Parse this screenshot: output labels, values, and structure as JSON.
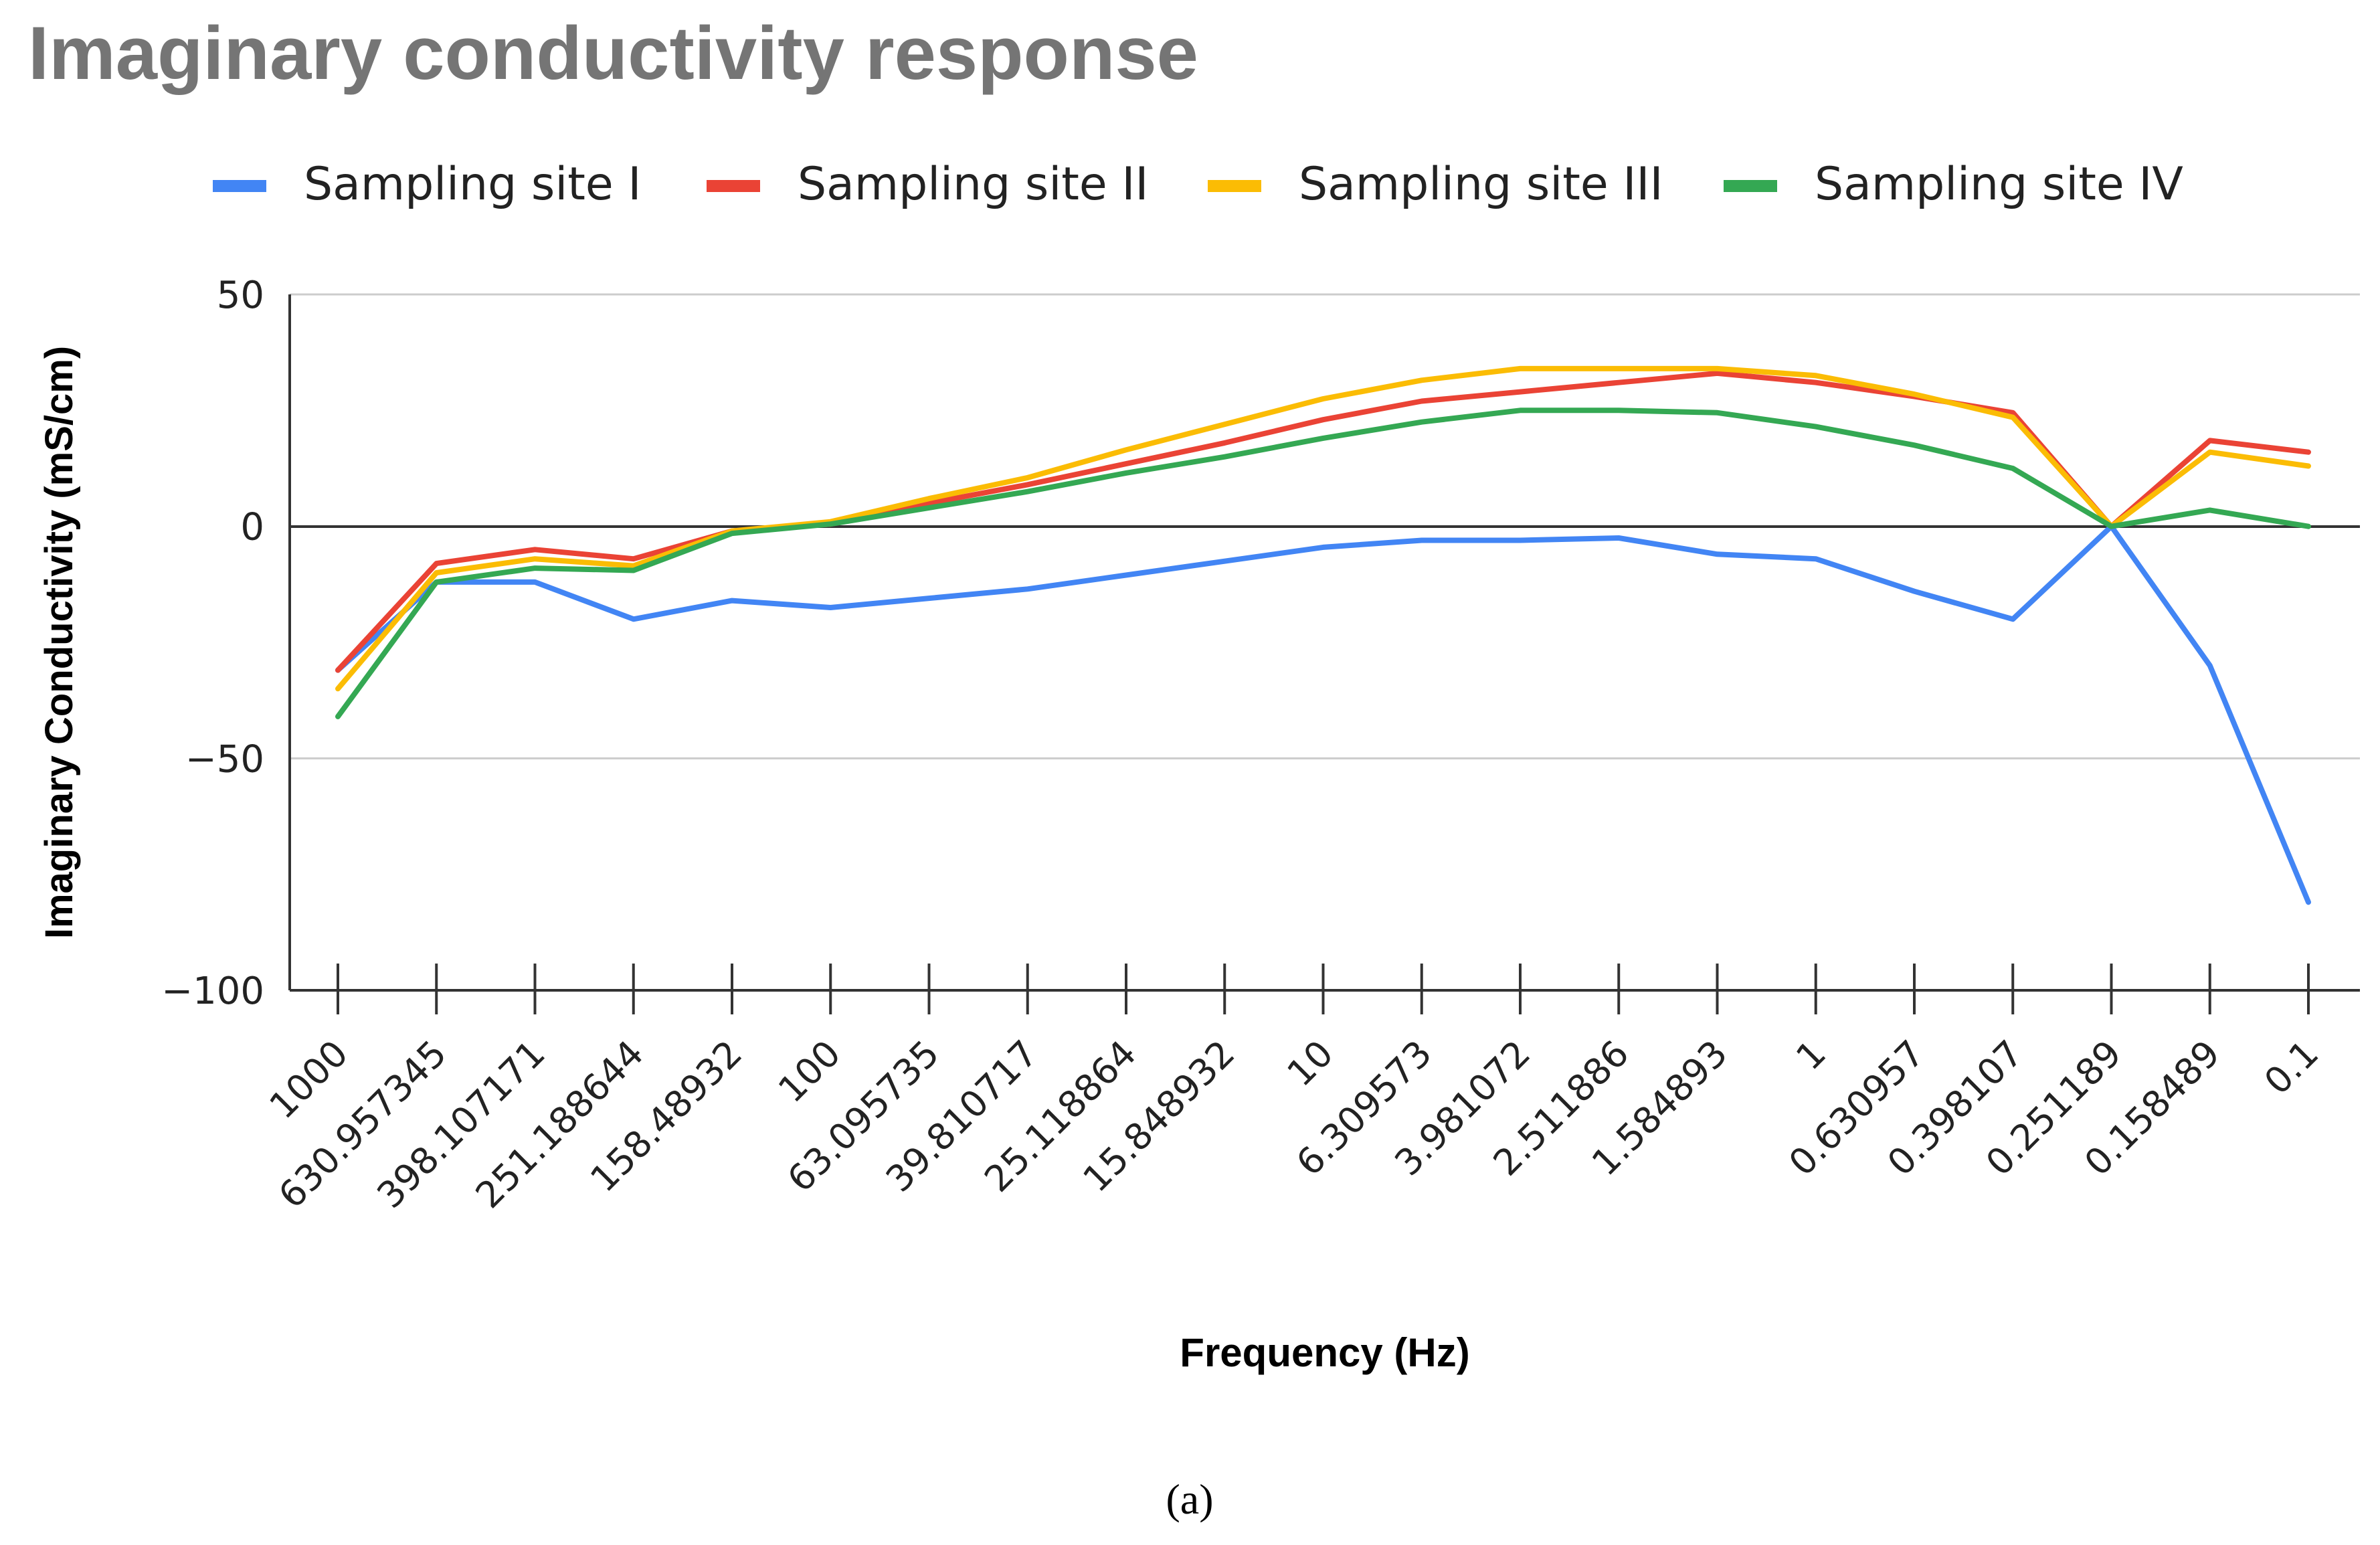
{
  "chart_data": {
    "type": "line",
    "title": "Imaginary conductivity response",
    "xlabel": "Frequency (Hz)",
    "ylabel": "Imaginary Conductivity (mS/cm)",
    "ylim": [
      -100,
      50
    ],
    "yticks": [
      "50",
      "0",
      "−50",
      "−100"
    ],
    "ytick_values": [
      50,
      0,
      -50,
      -100
    ],
    "grid": true,
    "legend_position": "top",
    "categories": [
      "1000",
      "630.957345",
      "398.107171",
      "251.188644",
      "158.48932",
      "100",
      "63.095735",
      "39.810717",
      "25.118864",
      "15.848932",
      "10",
      "6.309573",
      "3.981072",
      "2.511886",
      "1.584893",
      "1",
      "0.630957",
      "0.398107",
      "0.251189",
      "0.158489",
      "0.1"
    ],
    "series": [
      {
        "name": "Sampling site I",
        "color": "#4285F4",
        "values": [
          -31,
          -12,
          -12,
          -20,
          -16,
          -17.5,
          -15.5,
          -13.5,
          -10.5,
          -7.5,
          -4.5,
          -3,
          -3,
          -2.5,
          -6,
          -7,
          -14,
          -20,
          0,
          -30,
          -81
        ]
      },
      {
        "name": "Sampling site II",
        "color": "#EA4335",
        "values": [
          -31,
          -8,
          -5,
          -7,
          -1,
          0.5,
          5,
          9,
          13.5,
          18,
          23,
          27,
          29,
          31,
          33,
          31,
          28,
          24.5,
          0,
          18.5,
          16
        ]
      },
      {
        "name": "Sampling site III",
        "color": "#FBBC04",
        "values": [
          -35,
          -10,
          -7,
          -8.5,
          -1,
          1,
          6,
          10.5,
          16.5,
          22,
          27.5,
          31.5,
          34,
          34,
          34,
          32.5,
          28.5,
          23.5,
          0,
          16,
          13
        ]
      },
      {
        "name": "Sampling site IV",
        "color": "#34A853",
        "values": [
          -41,
          -12,
          -9,
          -9.5,
          -1.5,
          0.5,
          4,
          7.5,
          11.5,
          15,
          19,
          22.5,
          25,
          25,
          24.5,
          21.5,
          17.5,
          12.5,
          0,
          3.5,
          0
        ]
      }
    ]
  },
  "caption": "(a)"
}
